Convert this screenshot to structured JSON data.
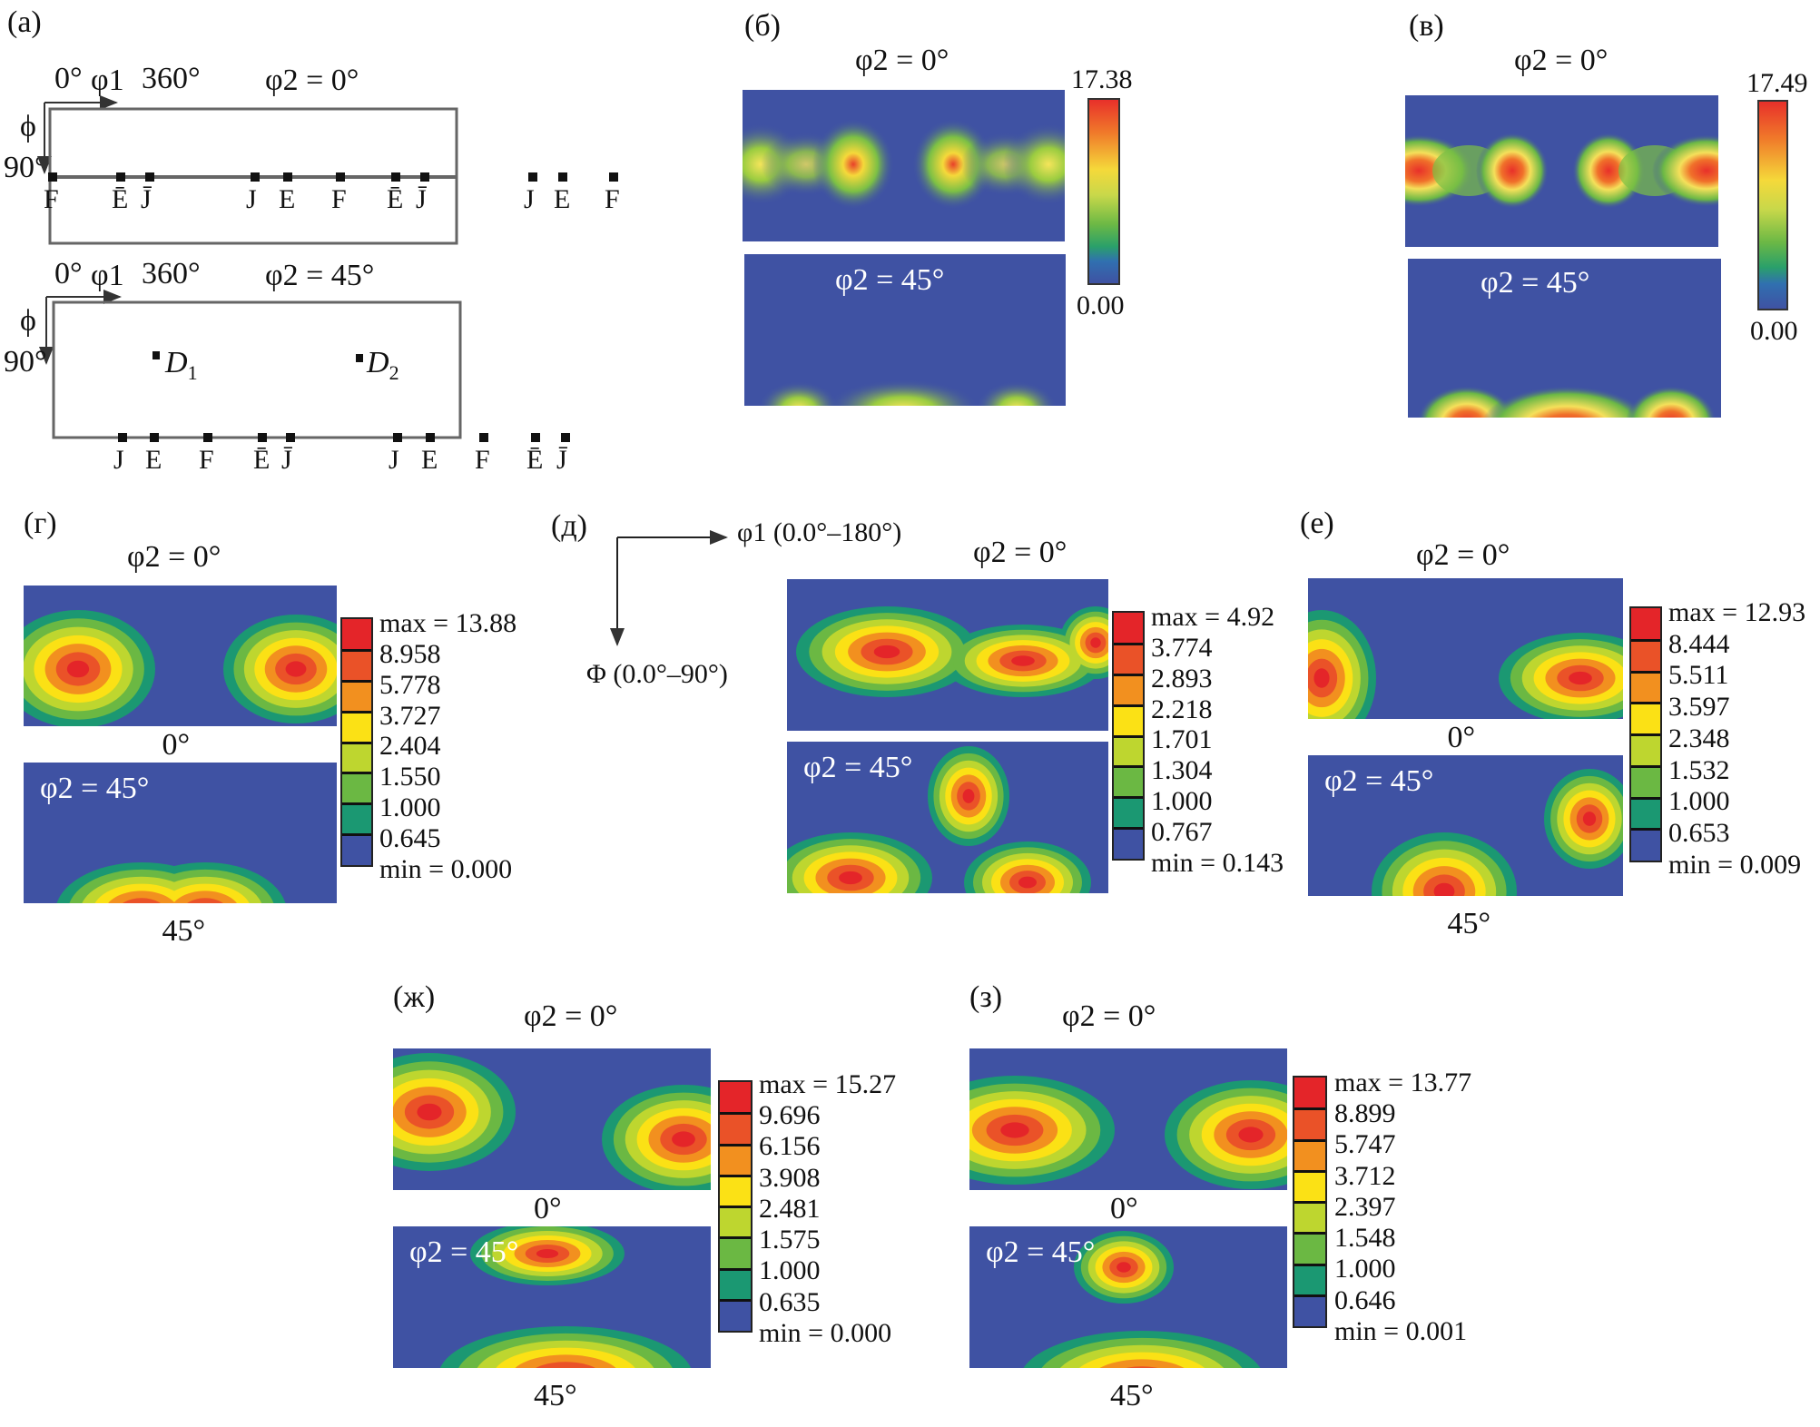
{
  "chart_data": [
    {
      "type": "diagram",
      "panel": "(a)",
      "title": "Ideal orientation positions in ODF sections",
      "sections": [
        {
          "phi2_label": "φ2 = 0°",
          "axis_labels": {
            "phi1_start": "0°",
            "phi1_symbol": "φ1",
            "phi1_end": "360°",
            "Phi_symbol": "ϕ",
            "Phi_end": "90°"
          },
          "bottom_markers": [
            "F",
            "Ē",
            "J̄",
            "J",
            "E",
            "F",
            "Ē",
            "J̄",
            "J",
            "E",
            "F"
          ],
          "inner_markers": []
        },
        {
          "phi2_label": "φ2 = 45°",
          "axis_labels": {
            "phi1_start": "0°",
            "phi1_symbol": "φ1",
            "phi1_end": "360°",
            "Phi_symbol": "ϕ",
            "Phi_end": "90°"
          },
          "bottom_markers": [
            "J",
            "E",
            "F",
            "Ē",
            "J̄",
            "J",
            "E",
            "F",
            "Ē",
            "J̄"
          ],
          "inner_markers": [
            "D1",
            "D2"
          ]
        }
      ]
    },
    {
      "type": "heatmap",
      "panel": "(б)",
      "sections": [
        "φ2 = 0°",
        "φ2 = 45°"
      ],
      "colorbar": {
        "max": "17.38",
        "min": "0.00",
        "style": "continuous"
      }
    },
    {
      "type": "heatmap",
      "panel": "(в)",
      "sections": [
        "φ2 = 0°",
        "φ2 = 45°"
      ],
      "colorbar": {
        "max": "17.49",
        "min": "0.00",
        "style": "continuous"
      }
    },
    {
      "type": "heatmap",
      "panel": "(г)",
      "sections": [
        "φ2 = 0°",
        "φ2 = 45°"
      ],
      "section_captions": [
        "0°",
        "45°"
      ],
      "levels": [
        "max = 13.88",
        "8.958",
        "5.778",
        "3.727",
        "2.404",
        "1.550",
        "1.000",
        "0.645",
        "min = 0.000"
      ]
    },
    {
      "type": "heatmap",
      "panel": "(д)",
      "sections": [
        "φ2 = 0°",
        "φ2 = 45°"
      ],
      "axes": {
        "x": "φ1 (0.0°–180°)",
        "y": "Φ (0.0°–90°)"
      },
      "levels": [
        "max = 4.92",
        "3.774",
        "2.893",
        "2.218",
        "1.701",
        "1.304",
        "1.000",
        "0.767",
        "min = 0.143"
      ]
    },
    {
      "type": "heatmap",
      "panel": "(е)",
      "sections": [
        "φ2 = 0°",
        "φ2 = 45°"
      ],
      "section_captions": [
        "0°",
        "45°"
      ],
      "levels": [
        "max = 12.93",
        "8.444",
        "5.511",
        "3.597",
        "2.348",
        "1.532",
        "1.000",
        "0.653",
        "min = 0.009"
      ]
    },
    {
      "type": "heatmap",
      "panel": "(ж)",
      "sections": [
        "φ2 = 0°",
        "φ2 = 45°"
      ],
      "section_captions": [
        "0°",
        "45°"
      ],
      "levels": [
        "max = 15.27",
        "9.696",
        "6.156",
        "3.908",
        "2.481",
        "1.575",
        "1.000",
        "0.635",
        "min = 0.000"
      ]
    },
    {
      "type": "heatmap",
      "panel": "(з)",
      "sections": [
        "φ2 = 0°",
        "φ2 = 45°"
      ],
      "section_captions": [
        "0°",
        "45°"
      ],
      "levels": [
        "max = 13.77",
        "8.899",
        "5.747",
        "3.712",
        "2.397",
        "1.548",
        "1.000",
        "0.646",
        "min = 0.001"
      ]
    }
  ],
  "colors": {
    "level_bands": [
      "#e42529",
      "#ea5228",
      "#f2901f",
      "#fbe115",
      "#bed62f",
      "#6bb843",
      "#1b9872",
      "#3f52a3"
    ],
    "background_blue": "#3f52a3"
  }
}
